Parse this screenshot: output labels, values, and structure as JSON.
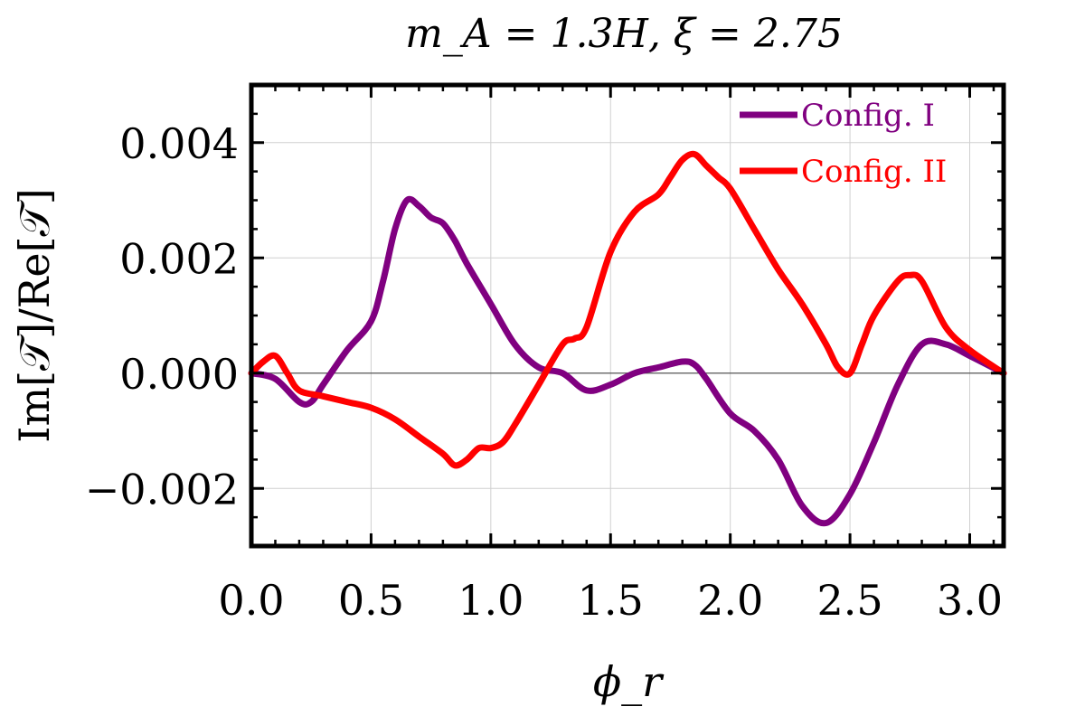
{
  "chart_data": {
    "type": "line",
    "title": "m_A = 1.3H, ξ = 2.75",
    "xlabel": "ϕ_r",
    "ylabel": "Im[𝒯]/Re[𝒯]",
    "xlim": [
      0.0,
      3.1416
    ],
    "ylim": [
      -0.003,
      0.005
    ],
    "x_ticks": [
      0.0,
      0.5,
      1.0,
      1.5,
      2.0,
      2.5,
      3.0
    ],
    "x_tick_labels": [
      "0.0",
      "0.5",
      "1.0",
      "1.5",
      "2.0",
      "2.5",
      "3.0"
    ],
    "y_ticks": [
      -0.002,
      0.0,
      0.002,
      0.004
    ],
    "y_tick_labels": [
      "−0.002",
      "0.000",
      "0.002",
      "0.004"
    ],
    "grid": true,
    "legend_position": "top-right",
    "series": [
      {
        "name": "Config. I",
        "color": "#800080",
        "x": [
          0.0,
          0.1,
          0.2,
          0.25,
          0.3,
          0.4,
          0.5,
          0.55,
          0.6,
          0.65,
          0.7,
          0.75,
          0.8,
          0.85,
          0.9,
          1.0,
          1.1,
          1.2,
          1.3,
          1.4,
          1.5,
          1.6,
          1.7,
          1.8,
          1.85,
          1.9,
          2.0,
          2.1,
          2.2,
          2.3,
          2.4,
          2.5,
          2.6,
          2.7,
          2.8,
          2.9,
          3.0,
          3.1416
        ],
        "values": [
          0.0,
          -0.0001,
          -0.0005,
          -0.0005,
          -0.0002,
          0.0004,
          0.0009,
          0.0016,
          0.0025,
          0.003,
          0.0029,
          0.0027,
          0.0026,
          0.0023,
          0.0019,
          0.0012,
          0.0005,
          0.0001,
          0.0,
          -0.0003,
          -0.0002,
          0.0,
          0.0001,
          0.0002,
          0.00015,
          -0.0001,
          -0.0007,
          -0.001,
          -0.0015,
          -0.0023,
          -0.0026,
          -0.0021,
          -0.0012,
          -0.0002,
          0.0005,
          0.0005,
          0.0003,
          0.0
        ]
      },
      {
        "name": "Config. II",
        "color": "#ff0000",
        "x": [
          0.0,
          0.05,
          0.1,
          0.15,
          0.2,
          0.3,
          0.4,
          0.5,
          0.6,
          0.7,
          0.8,
          0.85,
          0.9,
          0.95,
          1.0,
          1.05,
          1.1,
          1.2,
          1.3,
          1.35,
          1.4,
          1.5,
          1.6,
          1.7,
          1.75,
          1.8,
          1.85,
          1.9,
          1.95,
          2.0,
          2.1,
          2.2,
          2.3,
          2.4,
          2.45,
          2.5,
          2.55,
          2.6,
          2.7,
          2.75,
          2.8,
          2.9,
          3.0,
          3.1416
        ],
        "values": [
          0.0,
          0.0002,
          0.0003,
          0.0,
          -0.0003,
          -0.0004,
          -0.0005,
          -0.0006,
          -0.0008,
          -0.0011,
          -0.0014,
          -0.0016,
          -0.0015,
          -0.0013,
          -0.0013,
          -0.0012,
          -0.0009,
          -0.0002,
          0.0005,
          0.0006,
          0.0008,
          0.0021,
          0.0028,
          0.0031,
          0.0034,
          0.0037,
          0.0038,
          0.0036,
          0.0034,
          0.0032,
          0.0025,
          0.0018,
          0.0012,
          0.0005,
          0.0001,
          0.0,
          0.0005,
          0.001,
          0.0016,
          0.0017,
          0.0016,
          0.0008,
          0.0004,
          0.0
        ]
      }
    ]
  }
}
